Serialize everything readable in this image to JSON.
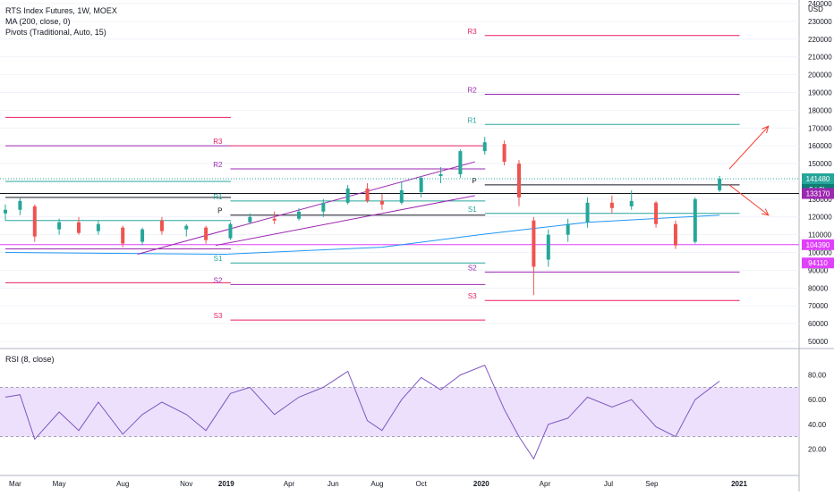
{
  "header": {
    "title": "RTS Index Futures, 1W, MOEX",
    "indicators": [
      "MA (200, close, 0)",
      "Pivots (Traditional, Auto, 15)"
    ],
    "rsi_label": "RSI (8, close)"
  },
  "currency": "USD",
  "price_axis_ticks": [
    50000,
    60000,
    70000,
    80000,
    90000,
    100000,
    110000,
    120000,
    130000,
    140000,
    150000,
    160000,
    170000,
    180000,
    190000,
    200000,
    210000,
    220000,
    230000,
    240000
  ],
  "rsi_axis_ticks": [
    20,
    40,
    60,
    80
  ],
  "time_axis_labels": [
    "Mar",
    "May",
    "Aug",
    "Nov",
    "2019",
    "Apr",
    "Jun",
    "Aug",
    "Oct",
    "2020",
    "Apr",
    "Jul",
    "Sep",
    "2021"
  ],
  "price_badges": {
    "last": "141480",
    "countdown": "2d 9h",
    "pivot": "133170",
    "support1": "104390",
    "support2": "94110"
  },
  "pivot_labels": {
    "r3": "R3",
    "r2": "R2",
    "r1": "R1",
    "p": "P",
    "s1": "S1",
    "s2": "S2",
    "s3": "S3"
  },
  "colors": {
    "up": "#26a69a",
    "down": "#ef5350",
    "ma": "#2196f3",
    "rsi": "#7e57c2",
    "rsi_band": "#e9d8fb",
    "pivot_r": "#e91e63",
    "pivot_r2": "#9c27b0",
    "pivot_p": "#131722",
    "pivot_s1": "#26a69a",
    "trend_channel": "#9c27b0",
    "arrow": "#f44336",
    "badge_pivot": "#9c27b0",
    "badge_support": "#e040fb"
  },
  "chart_data": {
    "type": "candlestick",
    "interval": "1W",
    "ylim": [
      45000,
      240000
    ],
    "rsi_ylim": [
      0,
      100
    ],
    "rsi_band": [
      30,
      70
    ],
    "last_price": 141480,
    "pivot_periods": [
      {
        "from": "2018-02-19",
        "to": "2018-12-31",
        "R3": 176000,
        "R2": 160000,
        "R1": 140000,
        "P": 131000,
        "S1": 118000,
        "S2": 102000,
        "S3": 83000
      },
      {
        "from": "2019-01-07",
        "to": "2019-12-30",
        "R3": 160000,
        "R2": 147000,
        "R1": 129000,
        "P": 121000,
        "S1": 94110,
        "S2": 82000,
        "S3": 62000
      },
      {
        "from": "2020-01-06",
        "to": "2020-12-28",
        "R3": 222000,
        "R2": 189000,
        "R1": 172000,
        "P": 138000,
        "S1": 122000,
        "S2": 89000,
        "S3": 73000
      }
    ],
    "horizontal_levels": [
      133170,
      104390
    ],
    "weeks": [
      {
        "date": "2018-02-19",
        "o": 122000,
        "h": 127000,
        "l": 118000,
        "c": 124000
      },
      {
        "date": "2018-03-12",
        "o": 124000,
        "h": 131000,
        "l": 121000,
        "c": 129000
      },
      {
        "date": "2018-04-02",
        "o": 126000,
        "h": 127000,
        "l": 106000,
        "c": 109000
      },
      {
        "date": "2018-05-07",
        "o": 113000,
        "h": 119000,
        "l": 110000,
        "c": 117000
      },
      {
        "date": "2018-06-04",
        "o": 117000,
        "h": 120000,
        "l": 110000,
        "c": 111000
      },
      {
        "date": "2018-07-02",
        "o": 112000,
        "h": 118000,
        "l": 110000,
        "c": 116000
      },
      {
        "date": "2018-08-06",
        "o": 114000,
        "h": 115000,
        "l": 103000,
        "c": 105000
      },
      {
        "date": "2018-09-03",
        "o": 106000,
        "h": 114000,
        "l": 104000,
        "c": 113000
      },
      {
        "date": "2018-10-01",
        "o": 118000,
        "h": 120000,
        "l": 110000,
        "c": 112000
      },
      {
        "date": "2018-11-05",
        "o": 113000,
        "h": 116000,
        "l": 109000,
        "c": 115000
      },
      {
        "date": "2018-12-03",
        "o": 114000,
        "h": 115000,
        "l": 105000,
        "c": 107000
      },
      {
        "date": "2019-01-07",
        "o": 108000,
        "h": 117000,
        "l": 107000,
        "c": 116000
      },
      {
        "date": "2019-02-04",
        "o": 117000,
        "h": 122000,
        "l": 116000,
        "c": 120000
      },
      {
        "date": "2019-03-11",
        "o": 119000,
        "h": 123000,
        "l": 116000,
        "c": 118000
      },
      {
        "date": "2019-04-15",
        "o": 119000,
        "h": 125000,
        "l": 118000,
        "c": 123000
      },
      {
        "date": "2019-05-20",
        "o": 123000,
        "h": 130000,
        "l": 120000,
        "c": 128000
      },
      {
        "date": "2019-06-24",
        "o": 128000,
        "h": 138000,
        "l": 127000,
        "c": 136000
      },
      {
        "date": "2019-07-22",
        "o": 136000,
        "h": 139000,
        "l": 128000,
        "c": 129000
      },
      {
        "date": "2019-08-12",
        "o": 129000,
        "h": 133000,
        "l": 124000,
        "c": 127000
      },
      {
        "date": "2019-09-09",
        "o": 128000,
        "h": 140000,
        "l": 127000,
        "c": 135000
      },
      {
        "date": "2019-10-07",
        "o": 134000,
        "h": 143000,
        "l": 131000,
        "c": 142000
      },
      {
        "date": "2019-11-04",
        "o": 143000,
        "h": 148000,
        "l": 139000,
        "c": 144000
      },
      {
        "date": "2019-12-02",
        "o": 144000,
        "h": 158000,
        "l": 142000,
        "c": 157000
      },
      {
        "date": "2020-01-06",
        "o": 157000,
        "h": 165000,
        "l": 155000,
        "c": 162000
      },
      {
        "date": "2020-02-03",
        "o": 161000,
        "h": 163000,
        "l": 149000,
        "c": 151000
      },
      {
        "date": "2020-02-24",
        "o": 150000,
        "h": 152000,
        "l": 126000,
        "c": 131000
      },
      {
        "date": "2020-03-16",
        "o": 118000,
        "h": 120000,
        "l": 76000,
        "c": 92000
      },
      {
        "date": "2020-04-06",
        "o": 96000,
        "h": 113000,
        "l": 92000,
        "c": 110000
      },
      {
        "date": "2020-05-04",
        "o": 110000,
        "h": 119000,
        "l": 106000,
        "c": 116000
      },
      {
        "date": "2020-06-01",
        "o": 117000,
        "h": 131000,
        "l": 114000,
        "c": 128000
      },
      {
        "date": "2020-07-06",
        "o": 128000,
        "h": 132000,
        "l": 122000,
        "c": 125000
      },
      {
        "date": "2020-08-03",
        "o": 126000,
        "h": 135000,
        "l": 124000,
        "c": 129000
      },
      {
        "date": "2020-09-07",
        "o": 128000,
        "h": 129000,
        "l": 114000,
        "c": 116000
      },
      {
        "date": "2020-10-05",
        "o": 116000,
        "h": 118000,
        "l": 102000,
        "c": 104000
      },
      {
        "date": "2020-11-02",
        "o": 106000,
        "h": 131000,
        "l": 105000,
        "c": 130000
      },
      {
        "date": "2020-12-07",
        "o": 135000,
        "h": 143000,
        "l": 134000,
        "c": 141480
      }
    ],
    "rsi_values": [
      {
        "date": "2018-02-19",
        "v": 62
      },
      {
        "date": "2018-03-12",
        "v": 64
      },
      {
        "date": "2018-04-02",
        "v": 28
      },
      {
        "date": "2018-05-07",
        "v": 50
      },
      {
        "date": "2018-06-04",
        "v": 35
      },
      {
        "date": "2018-07-02",
        "v": 58
      },
      {
        "date": "2018-08-06",
        "v": 32
      },
      {
        "date": "2018-09-03",
        "v": 48
      },
      {
        "date": "2018-10-01",
        "v": 58
      },
      {
        "date": "2018-11-05",
        "v": 48
      },
      {
        "date": "2018-12-03",
        "v": 35
      },
      {
        "date": "2019-01-07",
        "v": 65
      },
      {
        "date": "2019-02-04",
        "v": 70
      },
      {
        "date": "2019-03-11",
        "v": 48
      },
      {
        "date": "2019-04-15",
        "v": 62
      },
      {
        "date": "2019-05-20",
        "v": 70
      },
      {
        "date": "2019-06-24",
        "v": 83
      },
      {
        "date": "2019-07-22",
        "v": 43
      },
      {
        "date": "2019-08-12",
        "v": 35
      },
      {
        "date": "2019-09-09",
        "v": 60
      },
      {
        "date": "2019-10-07",
        "v": 78
      },
      {
        "date": "2019-11-04",
        "v": 68
      },
      {
        "date": "2019-12-02",
        "v": 80
      },
      {
        "date": "2020-01-06",
        "v": 88
      },
      {
        "date": "2020-02-03",
        "v": 52
      },
      {
        "date": "2020-02-24",
        "v": 30
      },
      {
        "date": "2020-03-16",
        "v": 12
      },
      {
        "date": "2020-04-06",
        "v": 40
      },
      {
        "date": "2020-05-04",
        "v": 45
      },
      {
        "date": "2020-06-01",
        "v": 62
      },
      {
        "date": "2020-07-06",
        "v": 54
      },
      {
        "date": "2020-08-03",
        "v": 60
      },
      {
        "date": "2020-09-07",
        "v": 38
      },
      {
        "date": "2020-10-05",
        "v": 30
      },
      {
        "date": "2020-11-02",
        "v": 60
      },
      {
        "date": "2020-12-07",
        "v": 75
      }
    ],
    "ma200": [
      {
        "date": "2018-02-19",
        "v": 100000
      },
      {
        "date": "2018-12-31",
        "v": 99000
      },
      {
        "date": "2019-08-12",
        "v": 103000
      },
      {
        "date": "2019-12-30",
        "v": 110000
      },
      {
        "date": "2020-06-01",
        "v": 117000
      },
      {
        "date": "2020-12-07",
        "v": 121000
      }
    ],
    "trend_channel": [
      {
        "from": "2018-08-27",
        "from_v": 99000,
        "to": "2019-12-23",
        "to_v": 151000
      },
      {
        "from": "2018-12-17",
        "from_v": 104000,
        "to": "2019-12-23",
        "to_v": 132000
      }
    ],
    "arrows": [
      {
        "from": "2020-12-21",
        "from_v": 147000,
        "to": "2021-02-15",
        "to_v": 171000
      },
      {
        "from": "2020-12-21",
        "from_v": 138000,
        "to": "2021-02-15",
        "to_v": 121000
      }
    ]
  }
}
